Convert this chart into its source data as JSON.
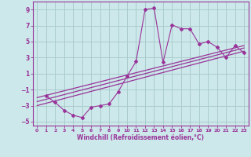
{
  "xlabel": "Windchill (Refroidissement éolien,°C)",
  "background_color": "#cce8ea",
  "grid_color": "#aacccc",
  "line_color": "#993399",
  "xlim": [
    -0.5,
    23.5
  ],
  "ylim": [
    -5.5,
    10.0
  ],
  "xticks": [
    0,
    1,
    2,
    3,
    4,
    5,
    6,
    7,
    8,
    9,
    10,
    11,
    12,
    13,
    14,
    15,
    16,
    17,
    18,
    19,
    20,
    21,
    22,
    23
  ],
  "yticks": [
    -5,
    -3,
    -1,
    1,
    3,
    5,
    7,
    9
  ],
  "data_x": [
    1,
    2,
    3,
    4,
    5,
    6,
    7,
    8,
    9,
    10,
    11,
    12,
    13,
    14,
    15,
    16,
    17,
    18,
    19,
    20,
    21,
    22,
    23
  ],
  "data_y": [
    -1.8,
    -2.6,
    -3.6,
    -4.2,
    -4.5,
    -3.2,
    -3.0,
    -2.8,
    -1.3,
    0.7,
    2.5,
    9.0,
    9.2,
    2.4,
    7.1,
    6.6,
    6.6,
    4.7,
    5.0,
    4.3,
    3.0,
    4.5,
    3.6
  ],
  "trend1_x": [
    0,
    23
  ],
  "trend1_y": [
    -3.0,
    3.8
  ],
  "trend2_x": [
    0,
    23
  ],
  "trend2_y": [
    -2.5,
    4.2
  ],
  "trend3_x": [
    0,
    23
  ],
  "trend3_y": [
    -2.0,
    4.5
  ]
}
